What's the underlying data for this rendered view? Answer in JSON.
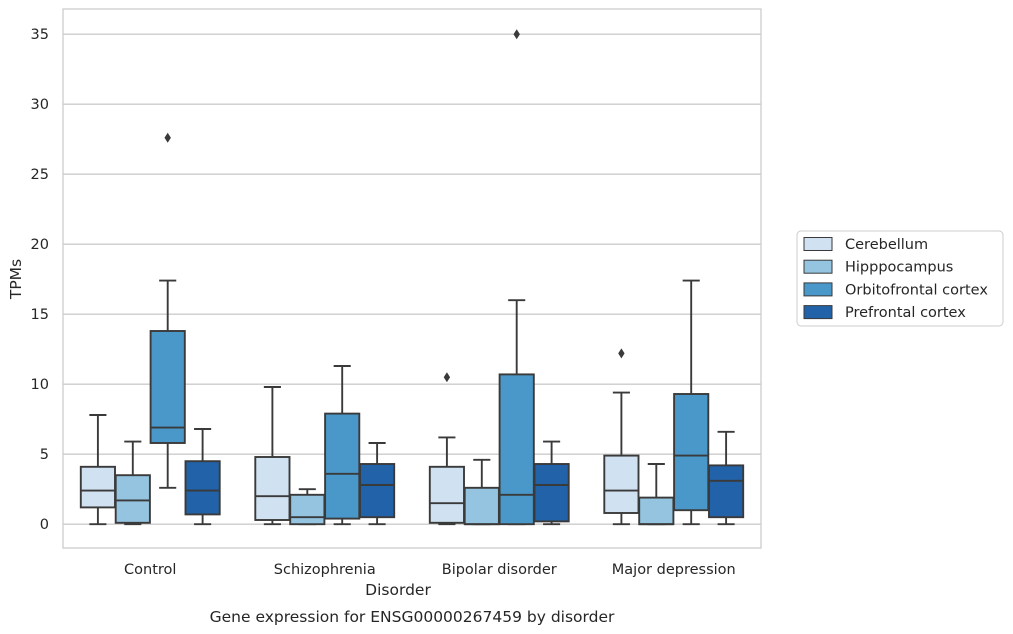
{
  "chart_data": {
    "type": "box",
    "title": "",
    "caption": "Gene expression for ENSG00000267459 by disorder",
    "xlabel": "Disorder",
    "ylabel": "TPMs",
    "ylim": [
      -1.7,
      36.8
    ],
    "yticks": [
      0,
      5,
      10,
      15,
      20,
      25,
      30,
      35
    ],
    "grid": "horizontal",
    "legend_position": "right",
    "categories": [
      "Control",
      "Schizophrenia",
      "Bipolar disorder",
      "Major depression"
    ],
    "series": [
      {
        "name": "Cerebellum",
        "color": "#d0e1f2",
        "boxes": [
          {
            "whislo": 0.0,
            "q1": 1.2,
            "med": 2.4,
            "q3": 4.1,
            "whishi": 7.8,
            "fliers": []
          },
          {
            "whislo": 0.0,
            "q1": 0.3,
            "med": 2.0,
            "q3": 4.8,
            "whishi": 9.8,
            "fliers": []
          },
          {
            "whislo": 0.0,
            "q1": 0.1,
            "med": 1.5,
            "q3": 4.1,
            "whishi": 6.2,
            "fliers": [
              10.5
            ]
          },
          {
            "whislo": 0.0,
            "q1": 0.8,
            "med": 2.4,
            "q3": 4.9,
            "whishi": 9.4,
            "fliers": [
              12.2
            ]
          }
        ]
      },
      {
        "name": "Hipppocampus",
        "color": "#94c4df",
        "boxes": [
          {
            "whislo": 0.0,
            "q1": 0.1,
            "med": 1.7,
            "q3": 3.5,
            "whishi": 5.9,
            "fliers": []
          },
          {
            "whislo": 0.0,
            "q1": 0.0,
            "med": 0.5,
            "q3": 2.1,
            "whishi": 2.5,
            "fliers": []
          },
          {
            "whislo": 0.0,
            "q1": 0.0,
            "med": 0.0,
            "q3": 2.6,
            "whishi": 4.6,
            "fliers": []
          },
          {
            "whislo": 0.0,
            "q1": 0.0,
            "med": 0.0,
            "q3": 1.9,
            "whishi": 4.3,
            "fliers": []
          }
        ]
      },
      {
        "name": "Orbitofrontal cortex",
        "color": "#4a98c9",
        "boxes": [
          {
            "whislo": 2.6,
            "q1": 5.8,
            "med": 6.9,
            "q3": 13.8,
            "whishi": 17.4,
            "fliers": [
              27.6
            ]
          },
          {
            "whislo": 0.0,
            "q1": 0.4,
            "med": 3.6,
            "q3": 7.9,
            "whishi": 11.3,
            "fliers": []
          },
          {
            "whislo": 0.0,
            "q1": 0.0,
            "med": 2.1,
            "q3": 10.7,
            "whishi": 16.0,
            "fliers": [
              35.0
            ]
          },
          {
            "whislo": 0.0,
            "q1": 1.0,
            "med": 4.9,
            "q3": 9.3,
            "whishi": 17.4,
            "fliers": []
          }
        ]
      },
      {
        "name": "Prefrontal cortex",
        "color": "#2262a8",
        "boxes": [
          {
            "whislo": 0.0,
            "q1": 0.7,
            "med": 2.4,
            "q3": 4.5,
            "whishi": 6.8,
            "fliers": []
          },
          {
            "whislo": 0.0,
            "q1": 0.5,
            "med": 2.8,
            "q3": 4.3,
            "whishi": 5.8,
            "fliers": []
          },
          {
            "whislo": 0.0,
            "q1": 0.2,
            "med": 2.8,
            "q3": 4.3,
            "whishi": 5.9,
            "fliers": []
          },
          {
            "whislo": 0.0,
            "q1": 0.5,
            "med": 3.1,
            "q3": 4.2,
            "whishi": 6.6,
            "fliers": []
          }
        ]
      }
    ]
  },
  "colors": {
    "edge": "#3a3a3a",
    "grid": "#cccccc",
    "frame": "#cccccc",
    "text": "#262626"
  }
}
